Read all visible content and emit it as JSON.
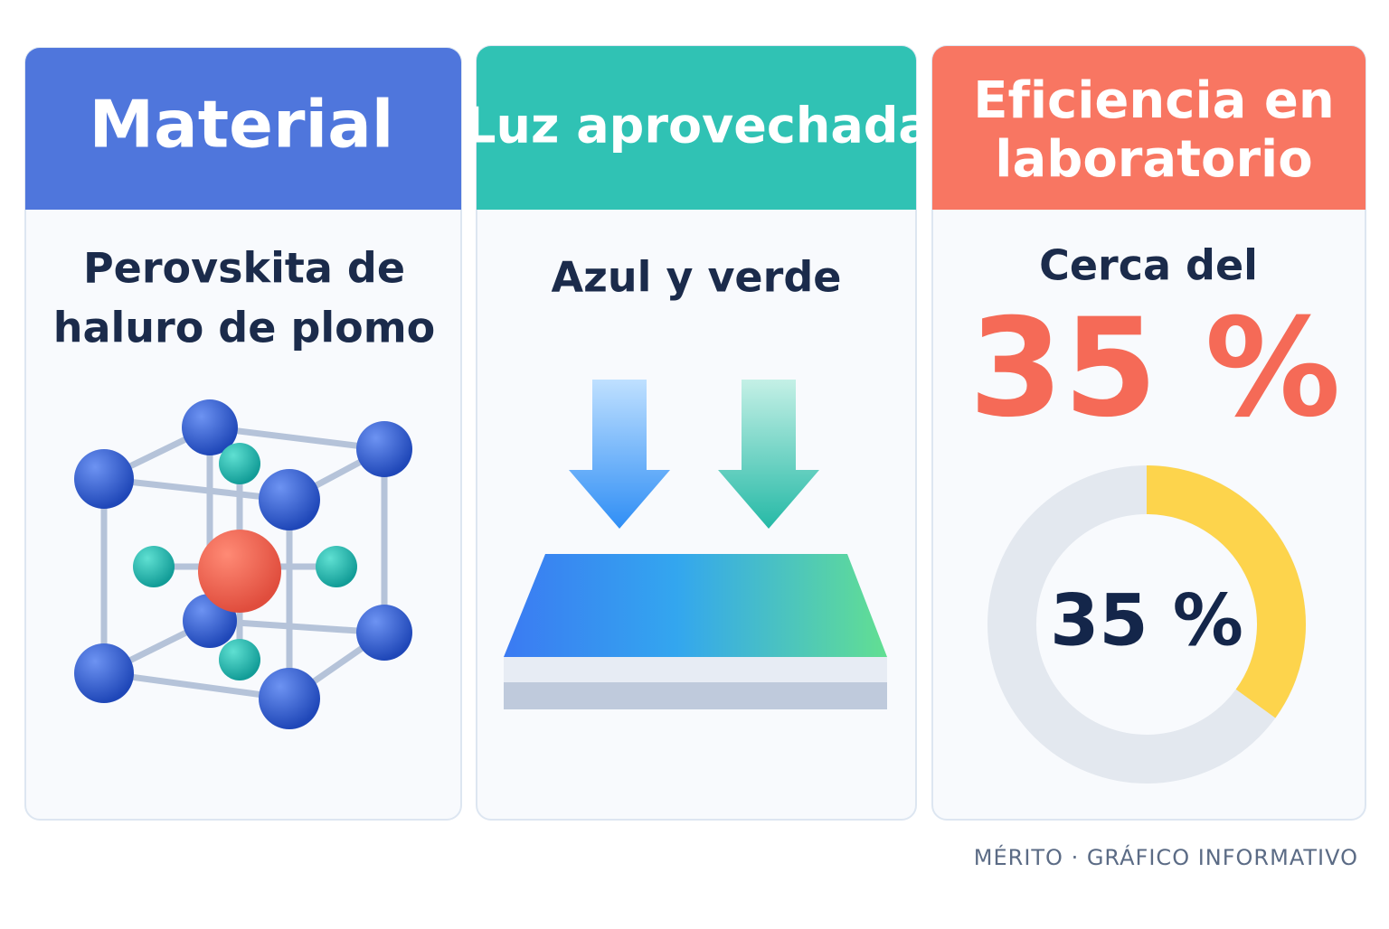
{
  "cards": [
    {
      "title": [
        "Material"
      ],
      "text": [
        "Perovskita de",
        "haluro de plomo"
      ]
    },
    {
      "title": [
        "Luz aprovechada"
      ],
      "text": [
        "Azul y verde"
      ]
    },
    {
      "title": [
        "Eficiencia en",
        "laboratorio"
      ],
      "text": [
        "Cerca del"
      ]
    }
  ],
  "efficiency": {
    "value": 35,
    "label": "35 %"
  },
  "footer": "MÉRITO · GRÁFICO INFORMATIVO"
}
